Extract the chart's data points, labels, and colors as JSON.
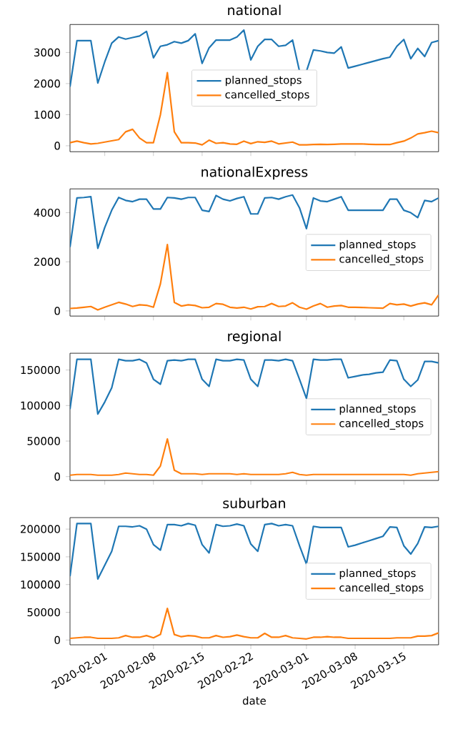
{
  "chart_data": [
    {
      "type": "line",
      "title": "national",
      "x": [
        "2020-01-27",
        "2020-01-28",
        "2020-01-29",
        "2020-01-30",
        "2020-01-31",
        "2020-02-01",
        "2020-02-02",
        "2020-02-03",
        "2020-02-04",
        "2020-02-05",
        "2020-02-06",
        "2020-02-07",
        "2020-02-08",
        "2020-02-09",
        "2020-02-10",
        "2020-02-11",
        "2020-02-12",
        "2020-02-13",
        "2020-02-14",
        "2020-02-15",
        "2020-02-16",
        "2020-02-17",
        "2020-02-18",
        "2020-02-19",
        "2020-02-20",
        "2020-02-21",
        "2020-02-22",
        "2020-02-23",
        "2020-02-24",
        "2020-02-25",
        "2020-02-26",
        "2020-02-27",
        "2020-02-28",
        "2020-02-29",
        "2020-03-01",
        "2020-03-02",
        "2020-03-03",
        "2020-03-04",
        "2020-03-05",
        "2020-03-06",
        "2020-03-07",
        "2020-03-08",
        "2020-03-09",
        "2020-03-10",
        "2020-03-11",
        "2020-03-12",
        "2020-03-13",
        "2020-03-14",
        "2020-03-15",
        "2020-03-16",
        "2020-03-17",
        "2020-03-18",
        "2020-03-19",
        "2020-03-20"
      ],
      "series": [
        {
          "name": "planned_stops",
          "color": "#1f77b4",
          "values": [
            1900,
            3380,
            3380,
            3380,
            2020,
            2700,
            3300,
            3500,
            3430,
            3480,
            3530,
            3680,
            2830,
            3200,
            3250,
            3350,
            3300,
            3380,
            3600,
            2650,
            3150,
            3400,
            3400,
            3400,
            3500,
            3720,
            2760,
            3200,
            3420,
            3420,
            3200,
            3230,
            3400,
            2400,
            2400,
            3080,
            3050,
            3000,
            2980,
            3180,
            2500,
            2560,
            2620,
            2680,
            2740,
            2800,
            2850,
            3200,
            3420,
            2800,
            3130,
            2870,
            3320,
            3380
          ]
        },
        {
          "name": "cancelled_stops",
          "color": "#ff7f0e",
          "values": [
            100,
            150,
            100,
            60,
            80,
            120,
            160,
            200,
            450,
            530,
            250,
            100,
            100,
            1000,
            2350,
            450,
            100,
            100,
            90,
            30,
            180,
            80,
            100,
            60,
            50,
            150,
            70,
            130,
            110,
            150,
            60,
            90,
            120,
            30,
            30,
            40,
            50,
            40,
            50,
            60,
            60,
            60,
            60,
            50,
            40,
            40,
            40,
            100,
            150,
            250,
            380,
            420,
            470,
            420
          ]
        }
      ],
      "xlim": [
        "2020-01-27",
        "2020-03-20"
      ],
      "xticks": [
        {
          "value": "2020-02-01",
          "label": null
        },
        {
          "value": "2020-02-08",
          "label": null
        },
        {
          "value": "2020-02-15",
          "label": null
        },
        {
          "value": "2020-02-22",
          "label": null
        },
        {
          "value": "2020-03-01",
          "label": null
        },
        {
          "value": "2020-03-08",
          "label": null
        },
        {
          "value": "2020-03-15",
          "label": null
        }
      ],
      "ylim": [
        -190,
        3900
      ],
      "yticks": [
        0,
        1000,
        2000,
        3000
      ],
      "tick_labels": "y",
      "legend": "center"
    },
    {
      "type": "line",
      "title": "nationalExpress",
      "x": [
        "2020-01-27",
        "2020-01-28",
        "2020-01-29",
        "2020-01-30",
        "2020-01-31",
        "2020-02-01",
        "2020-02-02",
        "2020-02-03",
        "2020-02-04",
        "2020-02-05",
        "2020-02-06",
        "2020-02-07",
        "2020-02-08",
        "2020-02-09",
        "2020-02-10",
        "2020-02-11",
        "2020-02-12",
        "2020-02-13",
        "2020-02-14",
        "2020-02-15",
        "2020-02-16",
        "2020-02-17",
        "2020-02-18",
        "2020-02-19",
        "2020-02-20",
        "2020-02-21",
        "2020-02-22",
        "2020-02-23",
        "2020-02-24",
        "2020-02-25",
        "2020-02-26",
        "2020-02-27",
        "2020-02-28",
        "2020-02-29",
        "2020-03-01",
        "2020-03-02",
        "2020-03-03",
        "2020-03-04",
        "2020-03-05",
        "2020-03-06",
        "2020-03-07",
        "2020-03-08",
        "2020-03-09",
        "2020-03-10",
        "2020-03-11",
        "2020-03-12",
        "2020-03-13",
        "2020-03-14",
        "2020-03-15",
        "2020-03-16",
        "2020-03-17",
        "2020-03-18",
        "2020-03-19",
        "2020-03-20"
      ],
      "series": [
        {
          "name": "planned_stops",
          "color": "#1f77b4",
          "values": [
            2600,
            4600,
            4620,
            4650,
            2550,
            3400,
            4100,
            4620,
            4500,
            4450,
            4550,
            4550,
            4150,
            4150,
            4620,
            4600,
            4550,
            4620,
            4620,
            4100,
            4050,
            4700,
            4550,
            4480,
            4580,
            4650,
            3950,
            3950,
            4600,
            4620,
            4550,
            4650,
            4720,
            4200,
            3350,
            4600,
            4480,
            4450,
            4550,
            4650,
            4100,
            4100,
            4100,
            4100,
            4100,
            4100,
            4550,
            4550,
            4100,
            4000,
            3800,
            4500,
            4450,
            4600
          ]
        },
        {
          "name": "cancelled_stops",
          "color": "#ff7f0e",
          "values": [
            100,
            120,
            150,
            180,
            40,
            150,
            250,
            350,
            280,
            180,
            250,
            230,
            150,
            1100,
            2700,
            350,
            200,
            250,
            220,
            130,
            150,
            300,
            270,
            150,
            120,
            150,
            80,
            170,
            180,
            300,
            180,
            200,
            330,
            150,
            70,
            200,
            300,
            150,
            200,
            220,
            150,
            150,
            140,
            130,
            120,
            110,
            300,
            250,
            280,
            200,
            280,
            330,
            250,
            650
          ]
        }
      ],
      "xlim": [
        "2020-01-27",
        "2020-03-20"
      ],
      "xticks": [
        {
          "value": "2020-02-01",
          "label": null
        },
        {
          "value": "2020-02-08",
          "label": null
        },
        {
          "value": "2020-02-15",
          "label": null
        },
        {
          "value": "2020-02-22",
          "label": null
        },
        {
          "value": "2020-03-01",
          "label": null
        },
        {
          "value": "2020-03-08",
          "label": null
        },
        {
          "value": "2020-03-15",
          "label": null
        }
      ],
      "ylim": [
        -210,
        4970
      ],
      "yticks": [
        0,
        2000,
        4000
      ],
      "tick_labels": "y",
      "legend": "right"
    },
    {
      "type": "line",
      "title": "regional",
      "x": [
        "2020-01-27",
        "2020-01-28",
        "2020-01-29",
        "2020-01-30",
        "2020-01-31",
        "2020-02-01",
        "2020-02-02",
        "2020-02-03",
        "2020-02-04",
        "2020-02-05",
        "2020-02-06",
        "2020-02-07",
        "2020-02-08",
        "2020-02-09",
        "2020-02-10",
        "2020-02-11",
        "2020-02-12",
        "2020-02-13",
        "2020-02-14",
        "2020-02-15",
        "2020-02-16",
        "2020-02-17",
        "2020-02-18",
        "2020-02-19",
        "2020-02-20",
        "2020-02-21",
        "2020-02-22",
        "2020-02-23",
        "2020-02-24",
        "2020-02-25",
        "2020-02-26",
        "2020-02-27",
        "2020-02-28",
        "2020-02-29",
        "2020-03-01",
        "2020-03-02",
        "2020-03-03",
        "2020-03-04",
        "2020-03-05",
        "2020-03-06",
        "2020-03-07",
        "2020-03-08",
        "2020-03-09",
        "2020-03-10",
        "2020-03-11",
        "2020-03-12",
        "2020-03-13",
        "2020-03-14",
        "2020-03-15",
        "2020-03-16",
        "2020-03-17",
        "2020-03-18",
        "2020-03-19",
        "2020-03-20"
      ],
      "series": [
        {
          "name": "planned_stops",
          "color": "#1f77b4",
          "values": [
            95000,
            165000,
            165000,
            165000,
            88000,
            105000,
            125000,
            165000,
            163000,
            163000,
            165000,
            160000,
            137000,
            130000,
            163000,
            164000,
            163000,
            165000,
            165000,
            137000,
            127000,
            165000,
            163000,
            163000,
            165000,
            164000,
            137000,
            127000,
            164000,
            164000,
            163000,
            165000,
            163000,
            137000,
            110000,
            165000,
            164000,
            164000,
            165000,
            165000,
            139000,
            141000,
            143000,
            144000,
            146000,
            147000,
            164000,
            163000,
            137000,
            127000,
            136000,
            162000,
            162000,
            160000
          ]
        },
        {
          "name": "cancelled_stops",
          "color": "#ff7f0e",
          "values": [
            2000,
            3000,
            3000,
            3000,
            2000,
            2000,
            2000,
            3000,
            5000,
            4000,
            3000,
            3000,
            2000,
            15000,
            53000,
            9000,
            4000,
            4000,
            4000,
            3000,
            4000,
            4000,
            4000,
            4000,
            3000,
            4000,
            3000,
            3000,
            3000,
            3000,
            3000,
            4000,
            6000,
            3000,
            2000,
            3000,
            3000,
            3000,
            3000,
            3000,
            3000,
            3000,
            3000,
            3000,
            3000,
            3000,
            3000,
            3000,
            3000,
            2000,
            4000,
            5000,
            6000,
            7000
          ]
        }
      ],
      "xlim": [
        "2020-01-27",
        "2020-03-20"
      ],
      "xticks": [
        {
          "value": "2020-02-01",
          "label": null
        },
        {
          "value": "2020-02-08",
          "label": null
        },
        {
          "value": "2020-02-15",
          "label": null
        },
        {
          "value": "2020-02-22",
          "label": null
        },
        {
          "value": "2020-03-01",
          "label": null
        },
        {
          "value": "2020-03-08",
          "label": null
        },
        {
          "value": "2020-03-15",
          "label": null
        }
      ],
      "ylim": [
        -5400,
        173600
      ],
      "yticks": [
        0,
        50000,
        100000,
        150000
      ],
      "tick_labels": "y",
      "legend": "right"
    },
    {
      "type": "line",
      "title": "suburban",
      "xlabel": "date",
      "x": [
        "2020-01-27",
        "2020-01-28",
        "2020-01-29",
        "2020-01-30",
        "2020-01-31",
        "2020-02-01",
        "2020-02-02",
        "2020-02-03",
        "2020-02-04",
        "2020-02-05",
        "2020-02-06",
        "2020-02-07",
        "2020-02-08",
        "2020-02-09",
        "2020-02-10",
        "2020-02-11",
        "2020-02-12",
        "2020-02-13",
        "2020-02-14",
        "2020-02-15",
        "2020-02-16",
        "2020-02-17",
        "2020-02-18",
        "2020-02-19",
        "2020-02-20",
        "2020-02-21",
        "2020-02-22",
        "2020-02-23",
        "2020-02-24",
        "2020-02-25",
        "2020-02-26",
        "2020-02-27",
        "2020-02-28",
        "2020-02-29",
        "2020-03-01",
        "2020-03-02",
        "2020-03-03",
        "2020-03-04",
        "2020-03-05",
        "2020-03-06",
        "2020-03-07",
        "2020-03-08",
        "2020-03-09",
        "2020-03-10",
        "2020-03-11",
        "2020-03-12",
        "2020-03-13",
        "2020-03-14",
        "2020-03-15",
        "2020-03-16",
        "2020-03-17",
        "2020-03-18",
        "2020-03-19",
        "2020-03-20"
      ],
      "series": [
        {
          "name": "planned_stops",
          "color": "#1f77b4",
          "values": [
            115000,
            210000,
            210000,
            210000,
            110000,
            135000,
            160000,
            205000,
            205000,
            204000,
            206000,
            200000,
            172000,
            162000,
            208000,
            208000,
            206000,
            210000,
            207000,
            172000,
            157000,
            208000,
            205000,
            206000,
            209000,
            206000,
            173000,
            160000,
            208000,
            210000,
            206000,
            208000,
            206000,
            170000,
            137000,
            205000,
            203000,
            203000,
            203000,
            203000,
            168000,
            171000,
            175000,
            179000,
            183000,
            187000,
            204000,
            203000,
            170000,
            155000,
            174000,
            204000,
            203000,
            205000
          ]
        },
        {
          "name": "cancelled_stops",
          "color": "#ff7f0e",
          "values": [
            3000,
            4000,
            5000,
            5000,
            3000,
            3000,
            3000,
            4000,
            8000,
            5000,
            5000,
            8000,
            4000,
            10000,
            57000,
            10000,
            6000,
            8000,
            7000,
            4000,
            4000,
            8000,
            5000,
            6000,
            9000,
            6000,
            4000,
            4000,
            12000,
            5000,
            5000,
            8000,
            4000,
            3000,
            2000,
            5000,
            5000,
            6000,
            5000,
            5000,
            3000,
            3000,
            3000,
            3000,
            3000,
            3000,
            3000,
            4000,
            4000,
            4000,
            7000,
            7000,
            8000,
            13000
          ]
        }
      ],
      "xlim": [
        "2020-01-27",
        "2020-03-20"
      ],
      "xticks": [
        "2020-02-01",
        "2020-02-08",
        "2020-02-15",
        "2020-02-22",
        "2020-03-01",
        "2020-03-08",
        "2020-03-15"
      ],
      "ylim": [
        -8600,
        220700
      ],
      "yticks": [
        0,
        50000,
        100000,
        150000,
        200000
      ],
      "legend": "right"
    }
  ]
}
